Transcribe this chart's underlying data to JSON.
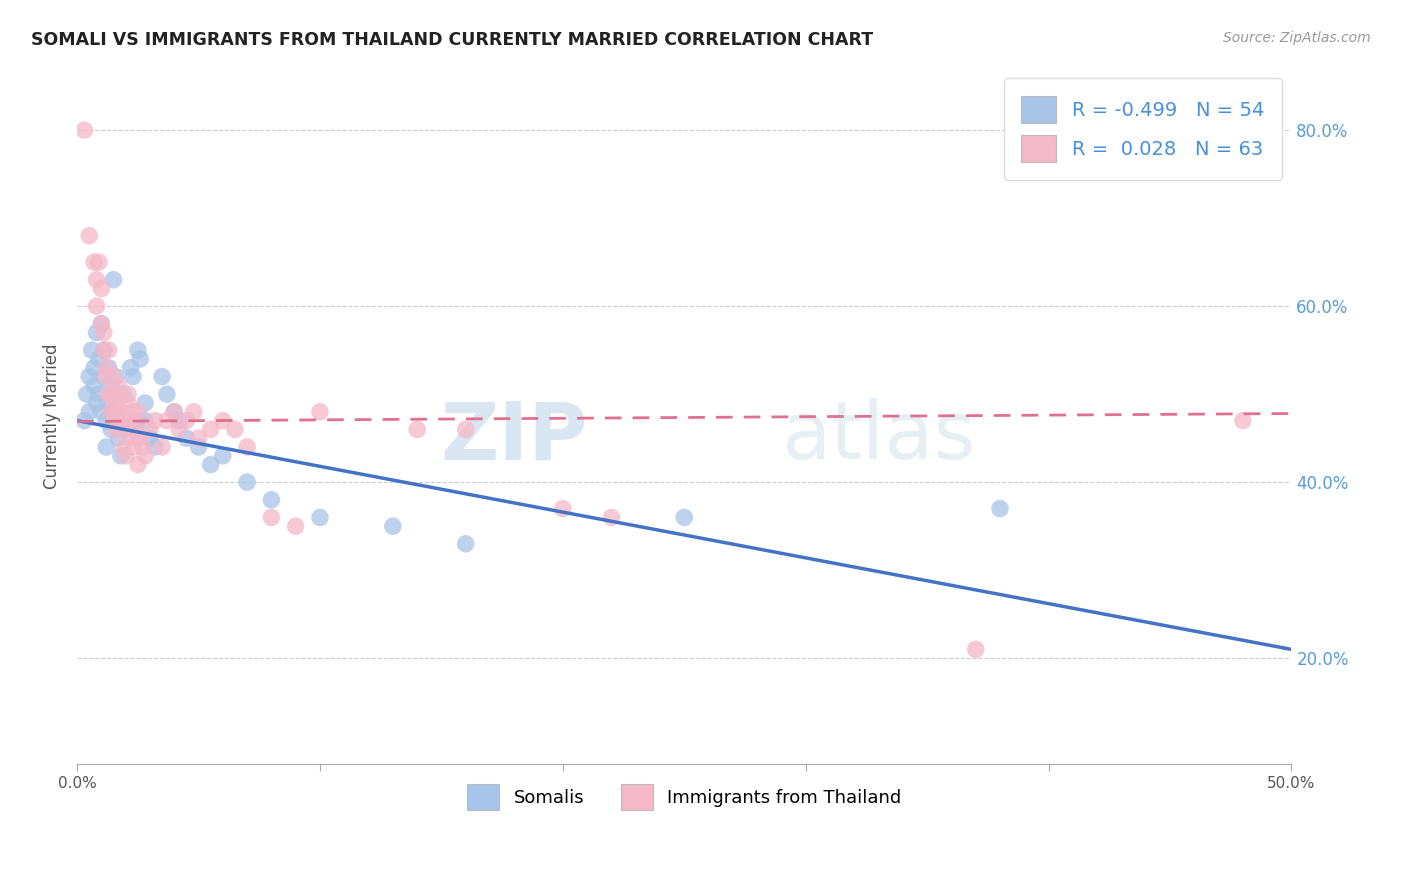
{
  "title": "SOMALI VS IMMIGRANTS FROM THAILAND CURRENTLY MARRIED CORRELATION CHART",
  "source": "Source: ZipAtlas.com",
  "ylabel": "Currently Married",
  "xmin": 0.0,
  "xmax": 0.5,
  "ymin": 0.08,
  "ymax": 0.87,
  "yticks": [
    0.2,
    0.4,
    0.6,
    0.8
  ],
  "ytick_labels": [
    "20.0%",
    "40.0%",
    "60.0%",
    "80.0%"
  ],
  "xticks": [
    0.0,
    0.1,
    0.2,
    0.3,
    0.4,
    0.5
  ],
  "xtick_labels": [
    "0.0%",
    "",
    "",
    "",
    "",
    "50.0%"
  ],
  "somali_R": -0.499,
  "somali_N": 54,
  "thailand_R": 0.028,
  "thailand_N": 63,
  "somali_color": "#a8c4e8",
  "somali_line_color": "#4472c4",
  "thailand_color": "#f4b8c8",
  "thailand_line_color": "#e07090",
  "watermark_zip": "ZIP",
  "watermark_atlas": "atlas",
  "legend_label_somali": "Somalis",
  "legend_label_thailand": "Immigrants from Thailand",
  "somali_scatter": [
    [
      0.003,
      0.47
    ],
    [
      0.004,
      0.5
    ],
    [
      0.005,
      0.52
    ],
    [
      0.005,
      0.48
    ],
    [
      0.006,
      0.55
    ],
    [
      0.007,
      0.53
    ],
    [
      0.007,
      0.51
    ],
    [
      0.008,
      0.49
    ],
    [
      0.008,
      0.57
    ],
    [
      0.009,
      0.54
    ],
    [
      0.009,
      0.5
    ],
    [
      0.01,
      0.48
    ],
    [
      0.01,
      0.58
    ],
    [
      0.011,
      0.52
    ],
    [
      0.011,
      0.55
    ],
    [
      0.012,
      0.47
    ],
    [
      0.012,
      0.44
    ],
    [
      0.013,
      0.49
    ],
    [
      0.013,
      0.53
    ],
    [
      0.014,
      0.51
    ],
    [
      0.014,
      0.46
    ],
    [
      0.015,
      0.5
    ],
    [
      0.015,
      0.63
    ],
    [
      0.016,
      0.48
    ],
    [
      0.016,
      0.52
    ],
    [
      0.017,
      0.45
    ],
    [
      0.018,
      0.47
    ],
    [
      0.018,
      0.43
    ],
    [
      0.019,
      0.5
    ],
    [
      0.02,
      0.46
    ],
    [
      0.022,
      0.53
    ],
    [
      0.023,
      0.52
    ],
    [
      0.025,
      0.47
    ],
    [
      0.025,
      0.55
    ],
    [
      0.026,
      0.54
    ],
    [
      0.028,
      0.49
    ],
    [
      0.028,
      0.47
    ],
    [
      0.03,
      0.45
    ],
    [
      0.032,
      0.44
    ],
    [
      0.035,
      0.52
    ],
    [
      0.037,
      0.5
    ],
    [
      0.04,
      0.48
    ],
    [
      0.042,
      0.47
    ],
    [
      0.045,
      0.45
    ],
    [
      0.05,
      0.44
    ],
    [
      0.055,
      0.42
    ],
    [
      0.06,
      0.43
    ],
    [
      0.07,
      0.4
    ],
    [
      0.08,
      0.38
    ],
    [
      0.1,
      0.36
    ],
    [
      0.13,
      0.35
    ],
    [
      0.16,
      0.33
    ],
    [
      0.25,
      0.36
    ],
    [
      0.38,
      0.37
    ]
  ],
  "thailand_scatter": [
    [
      0.003,
      0.8
    ],
    [
      0.005,
      0.68
    ],
    [
      0.007,
      0.65
    ],
    [
      0.008,
      0.63
    ],
    [
      0.008,
      0.6
    ],
    [
      0.009,
      0.65
    ],
    [
      0.01,
      0.62
    ],
    [
      0.01,
      0.58
    ],
    [
      0.011,
      0.55
    ],
    [
      0.011,
      0.57
    ],
    [
      0.012,
      0.53
    ],
    [
      0.012,
      0.52
    ],
    [
      0.013,
      0.5
    ],
    [
      0.013,
      0.55
    ],
    [
      0.014,
      0.48
    ],
    [
      0.014,
      0.5
    ],
    [
      0.015,
      0.52
    ],
    [
      0.015,
      0.48
    ],
    [
      0.016,
      0.46
    ],
    [
      0.016,
      0.49
    ],
    [
      0.017,
      0.5
    ],
    [
      0.017,
      0.51
    ],
    [
      0.018,
      0.47
    ],
    [
      0.018,
      0.48
    ],
    [
      0.019,
      0.46
    ],
    [
      0.019,
      0.44
    ],
    [
      0.02,
      0.47
    ],
    [
      0.02,
      0.43
    ],
    [
      0.021,
      0.5
    ],
    [
      0.021,
      0.49
    ],
    [
      0.022,
      0.47
    ],
    [
      0.022,
      0.46
    ],
    [
      0.023,
      0.44
    ],
    [
      0.023,
      0.48
    ],
    [
      0.024,
      0.46
    ],
    [
      0.024,
      0.45
    ],
    [
      0.025,
      0.42
    ],
    [
      0.025,
      0.48
    ],
    [
      0.026,
      0.45
    ],
    [
      0.027,
      0.44
    ],
    [
      0.028,
      0.43
    ],
    [
      0.03,
      0.46
    ],
    [
      0.032,
      0.47
    ],
    [
      0.035,
      0.44
    ],
    [
      0.037,
      0.47
    ],
    [
      0.04,
      0.48
    ],
    [
      0.042,
      0.46
    ],
    [
      0.045,
      0.47
    ],
    [
      0.048,
      0.48
    ],
    [
      0.05,
      0.45
    ],
    [
      0.055,
      0.46
    ],
    [
      0.06,
      0.47
    ],
    [
      0.065,
      0.46
    ],
    [
      0.07,
      0.44
    ],
    [
      0.08,
      0.36
    ],
    [
      0.09,
      0.35
    ],
    [
      0.1,
      0.48
    ],
    [
      0.14,
      0.46
    ],
    [
      0.16,
      0.46
    ],
    [
      0.2,
      0.37
    ],
    [
      0.22,
      0.36
    ],
    [
      0.37,
      0.21
    ],
    [
      0.48,
      0.47
    ]
  ]
}
